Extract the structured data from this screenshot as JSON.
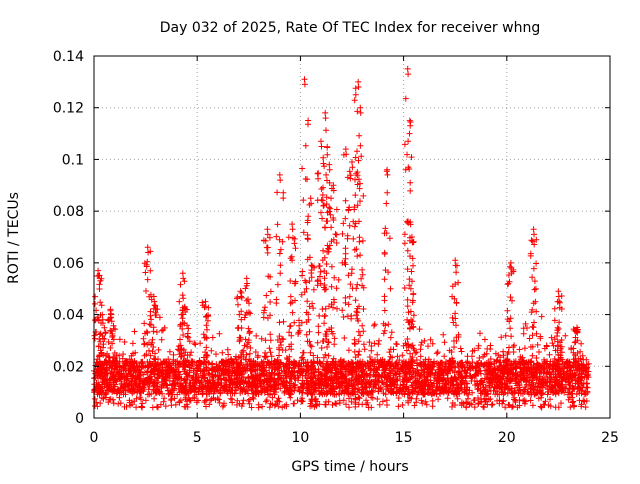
{
  "chart_data": {
    "type": "scatter",
    "title": "Day 032 of 2025, Rate Of TEC Index for receiver whng",
    "xlabel": "GPS time / hours",
    "ylabel": "ROTI / TECUs",
    "xlim": [
      0,
      25
    ],
    "ylim": [
      0,
      0.14
    ],
    "xticks": [
      "0",
      "5",
      "10",
      "15",
      "20",
      "25"
    ],
    "yticks": [
      "0",
      "0.02",
      "0.04",
      "0.06",
      "0.08",
      "0.1",
      "0.12",
      "0.14"
    ],
    "grid": true,
    "marker": "plus",
    "marker_color": "#ff0000",
    "background_band": {
      "x_range": [
        0,
        24
      ],
      "sparse_low": 0.008,
      "dense_low": 0.009,
      "dense_high": 0.022,
      "points_per_hour": 900
    },
    "peaks": [
      {
        "x": 0.2,
        "y": 0.057
      },
      {
        "x": 0.4,
        "y": 0.04
      },
      {
        "x": 0.8,
        "y": 0.042
      },
      {
        "x": 2.6,
        "y": 0.066
      },
      {
        "x": 2.9,
        "y": 0.047
      },
      {
        "x": 4.3,
        "y": 0.056
      },
      {
        "x": 4.4,
        "y": 0.043
      },
      {
        "x": 5.4,
        "y": 0.045
      },
      {
        "x": 7.1,
        "y": 0.049
      },
      {
        "x": 7.4,
        "y": 0.054
      },
      {
        "x": 8.4,
        "y": 0.073
      },
      {
        "x": 9.0,
        "y": 0.094
      },
      {
        "x": 9.6,
        "y": 0.075
      },
      {
        "x": 10.2,
        "y": 0.131
      },
      {
        "x": 10.5,
        "y": 0.085
      },
      {
        "x": 11.0,
        "y": 0.107
      },
      {
        "x": 11.2,
        "y": 0.118
      },
      {
        "x": 11.4,
        "y": 0.098
      },
      {
        "x": 11.6,
        "y": 0.09
      },
      {
        "x": 12.2,
        "y": 0.104
      },
      {
        "x": 12.5,
        "y": 0.099
      },
      {
        "x": 12.8,
        "y": 0.13
      },
      {
        "x": 12.9,
        "y": 0.12
      },
      {
        "x": 14.2,
        "y": 0.096
      },
      {
        "x": 15.2,
        "y": 0.135
      },
      {
        "x": 15.3,
        "y": 0.115
      },
      {
        "x": 15.4,
        "y": 0.07
      },
      {
        "x": 17.5,
        "y": 0.061
      },
      {
        "x": 20.2,
        "y": 0.06
      },
      {
        "x": 21.3,
        "y": 0.073
      },
      {
        "x": 22.5,
        "y": 0.049
      },
      {
        "x": 23.4,
        "y": 0.035
      }
    ]
  }
}
